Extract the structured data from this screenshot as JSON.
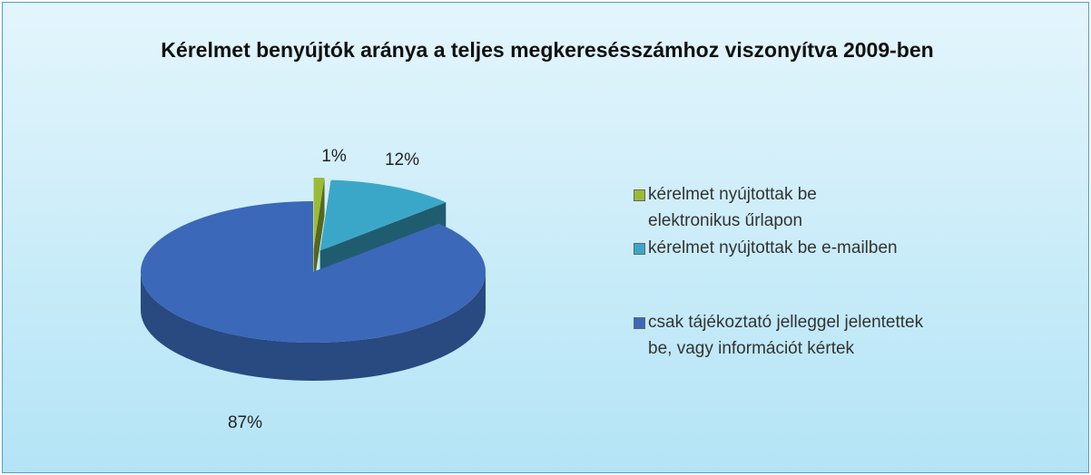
{
  "chart_data": {
    "type": "pie",
    "title": "Kérelmet benyújtók aránya a teljes megkeresésszámhoz viszonyítva 2009-ben",
    "categories": [
      "kérelmet nyújtottak be elektronikus űrlapon",
      "kérelmet nyújtottak be e-mailben",
      "csak tájékoztató jelleggel jelentettek be, vagy információt kértek"
    ],
    "values": [
      1,
      12,
      87
    ],
    "value_labels": [
      "1%",
      "12%",
      "87%"
    ],
    "colors": [
      "#9bbb35",
      "#3aa7c9",
      "#3b68b8"
    ],
    "legend": "right"
  }
}
